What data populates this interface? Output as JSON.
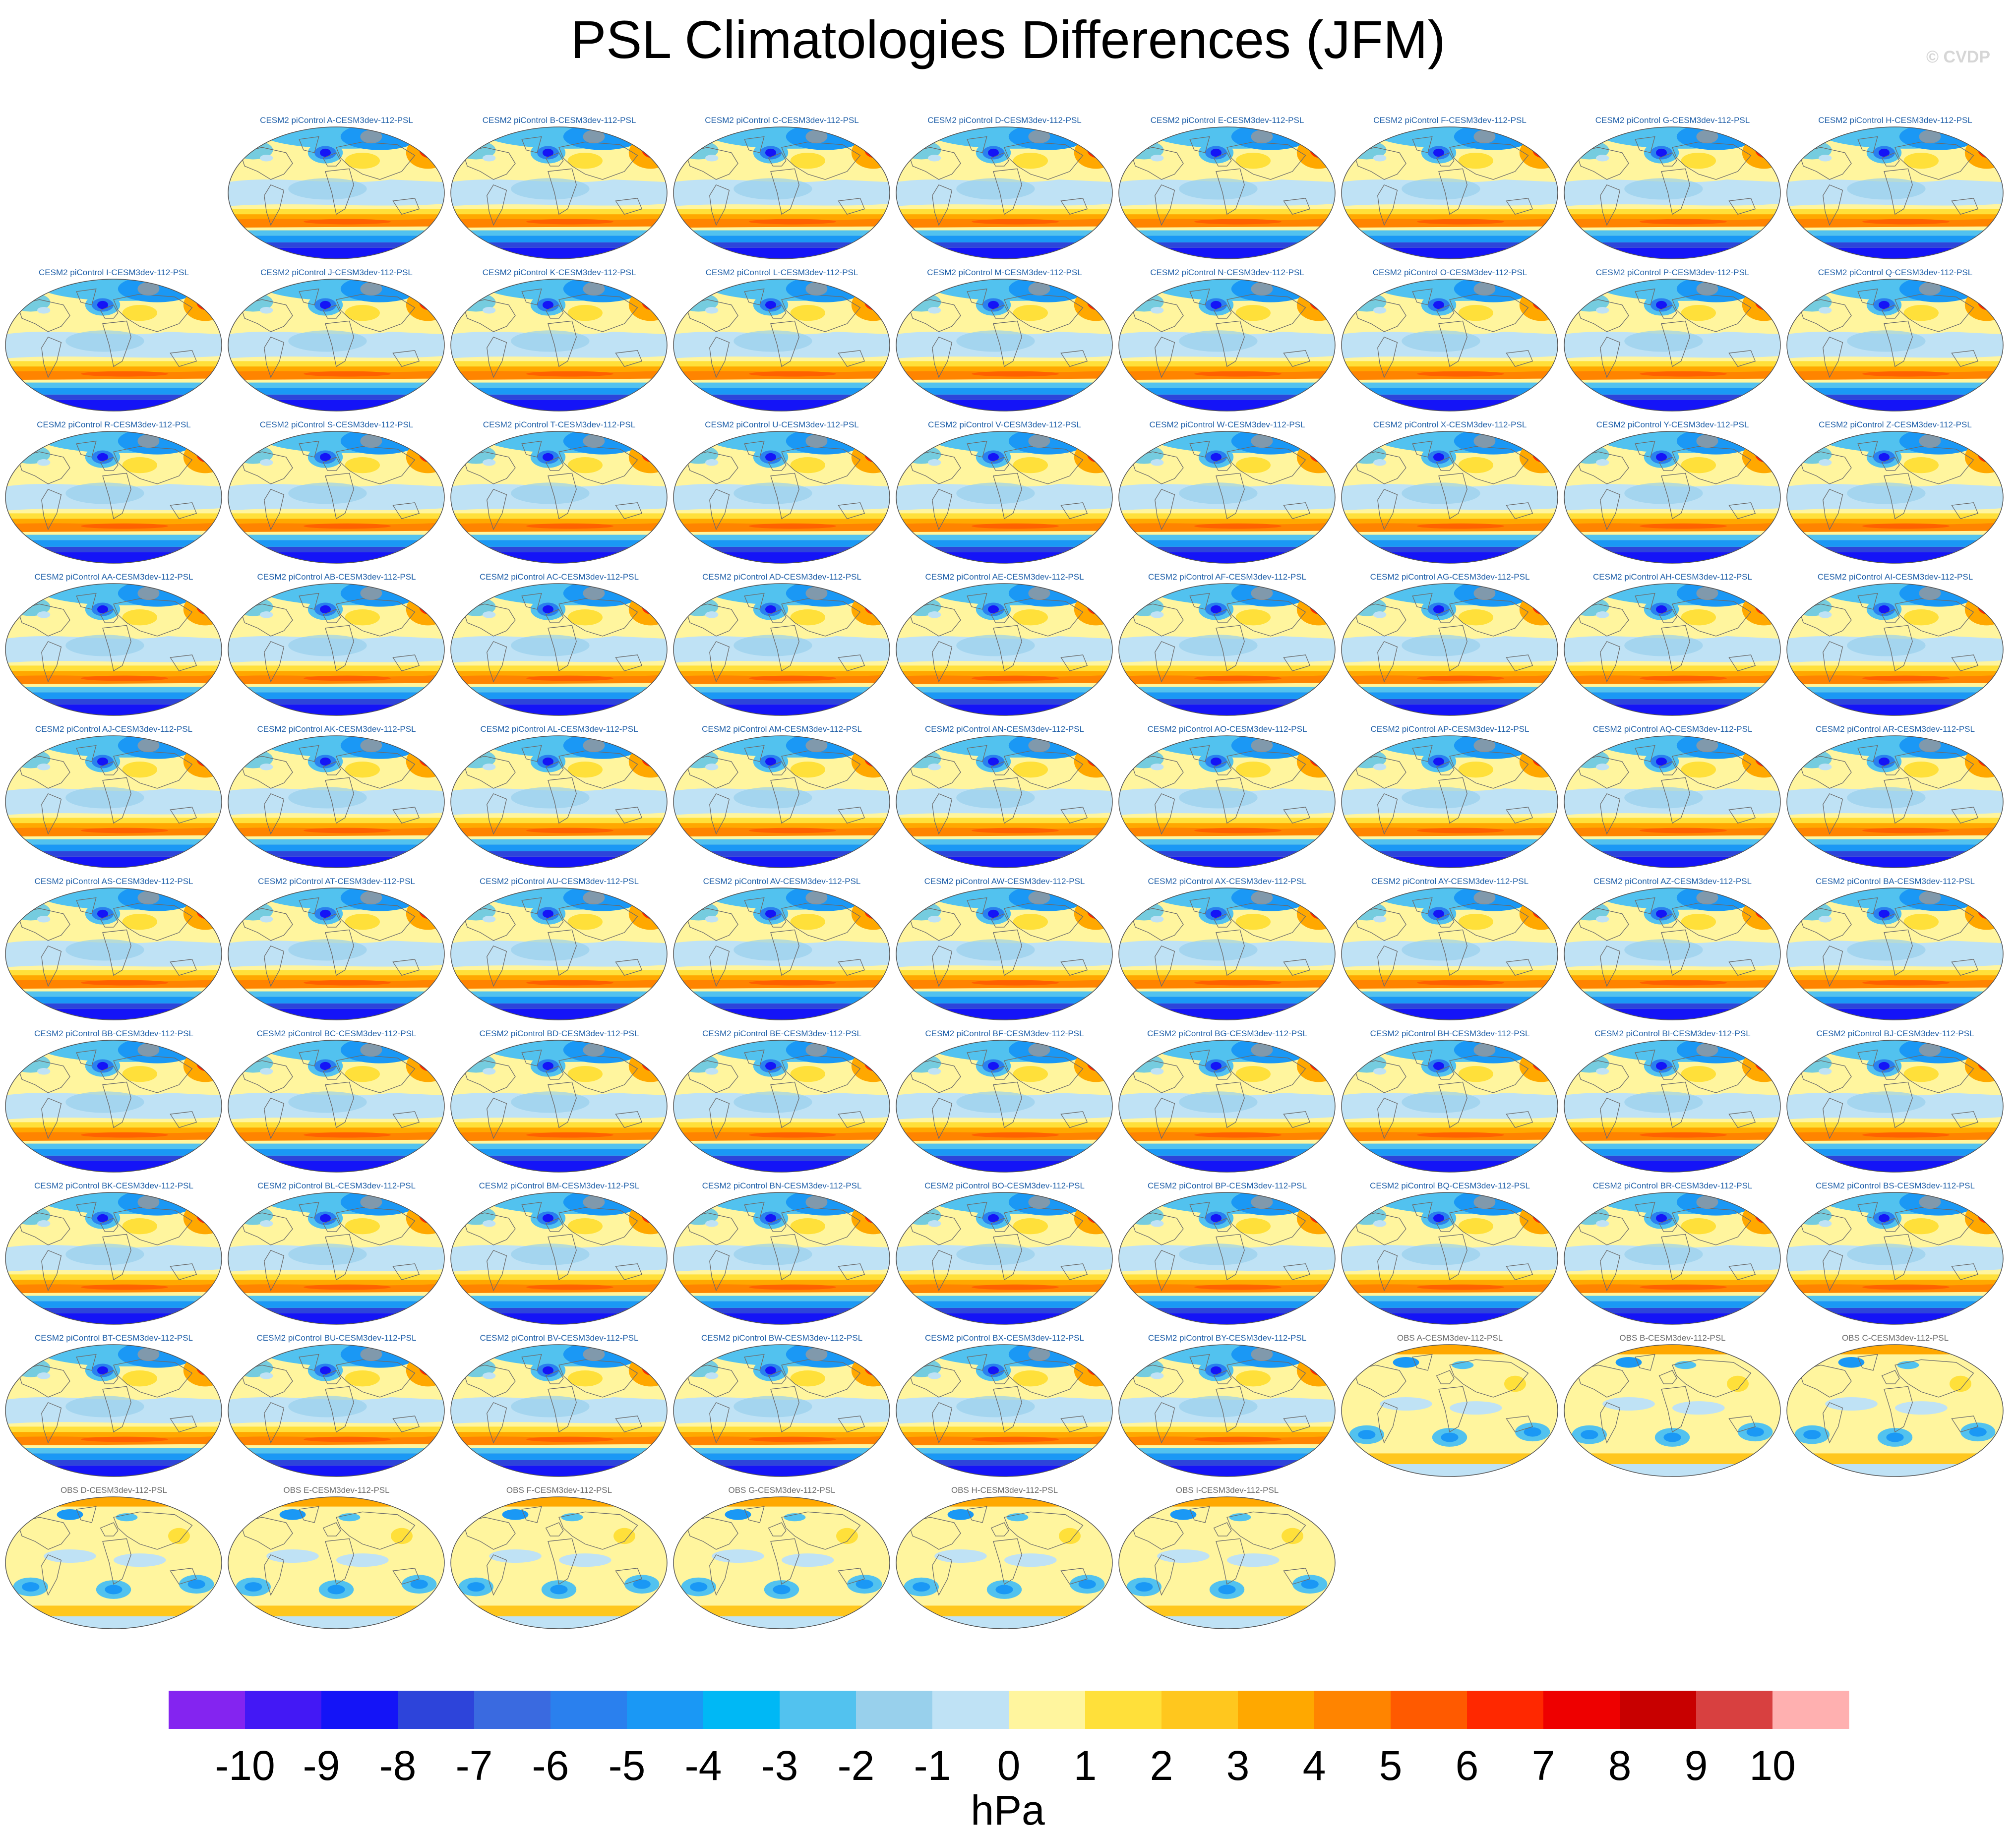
{
  "figure_title": "PSL Climatologies Differences (JFM)",
  "credit": "© CVDP",
  "chart_data": {
    "type": "heatmap",
    "title": "PSL Climatologies Differences (JFM)",
    "variable": "PSL",
    "season": "JFM",
    "reference": "CESM3dev-112",
    "units": "hPa",
    "colorbar": {
      "label": "hPa",
      "tick_labels": [
        "-10",
        "-9",
        "-8",
        "-7",
        "-6",
        "-5",
        "-4",
        "-3",
        "-2",
        "-1",
        "0",
        "1",
        "2",
        "3",
        "4",
        "5",
        "6",
        "7",
        "8",
        "9",
        "10"
      ],
      "levels": [
        -10,
        -9,
        -8,
        -7,
        -6,
        -5,
        -4,
        -3,
        -2,
        -1,
        0,
        1,
        2,
        3,
        4,
        5,
        6,
        7,
        8,
        9,
        10
      ],
      "colors": [
        "#8424f0",
        "#4318f5",
        "#1414f7",
        "#2d44da",
        "#3a6ae0",
        "#2a80ee",
        "#1a98f5",
        "#00b8f5",
        "#52c2ef",
        "#98d0ec",
        "#bfe2f5",
        "#fff59e",
        "#ffe03a",
        "#ffc71e",
        "#ffa800",
        "#ff8400",
        "#ff5a00",
        "#ff2800",
        "#ee0000",
        "#c80000",
        "#d84040",
        "#ffb0b0"
      ]
    },
    "panels": [
      {
        "label": "CESM2 piControl A-CESM3dev-112-PSL",
        "type": "model"
      },
      {
        "label": "CESM2 piControl B-CESM3dev-112-PSL",
        "type": "model"
      },
      {
        "label": "CESM2 piControl C-CESM3dev-112-PSL",
        "type": "model"
      },
      {
        "label": "CESM2 piControl D-CESM3dev-112-PSL",
        "type": "model"
      },
      {
        "label": "CESM2 piControl E-CESM3dev-112-PSL",
        "type": "model"
      },
      {
        "label": "CESM2 piControl F-CESM3dev-112-PSL",
        "type": "model"
      },
      {
        "label": "CESM2 piControl G-CESM3dev-112-PSL",
        "type": "model"
      },
      {
        "label": "CESM2 piControl H-CESM3dev-112-PSL",
        "type": "model"
      },
      {
        "label": "CESM2 piControl I-CESM3dev-112-PSL",
        "type": "model"
      },
      {
        "label": "CESM2 piControl J-CESM3dev-112-PSL",
        "type": "model"
      },
      {
        "label": "CESM2 piControl K-CESM3dev-112-PSL",
        "type": "model"
      },
      {
        "label": "CESM2 piControl L-CESM3dev-112-PSL",
        "type": "model"
      },
      {
        "label": "CESM2 piControl M-CESM3dev-112-PSL",
        "type": "model"
      },
      {
        "label": "CESM2 piControl N-CESM3dev-112-PSL",
        "type": "model"
      },
      {
        "label": "CESM2 piControl O-CESM3dev-112-PSL",
        "type": "model"
      },
      {
        "label": "CESM2 piControl P-CESM3dev-112-PSL",
        "type": "model"
      },
      {
        "label": "CESM2 piControl Q-CESM3dev-112-PSL",
        "type": "model"
      },
      {
        "label": "CESM2 piControl R-CESM3dev-112-PSL",
        "type": "model"
      },
      {
        "label": "CESM2 piControl S-CESM3dev-112-PSL",
        "type": "model"
      },
      {
        "label": "CESM2 piControl T-CESM3dev-112-PSL",
        "type": "model"
      },
      {
        "label": "CESM2 piControl U-CESM3dev-112-PSL",
        "type": "model"
      },
      {
        "label": "CESM2 piControl V-CESM3dev-112-PSL",
        "type": "model"
      },
      {
        "label": "CESM2 piControl W-CESM3dev-112-PSL",
        "type": "model"
      },
      {
        "label": "CESM2 piControl X-CESM3dev-112-PSL",
        "type": "model"
      },
      {
        "label": "CESM2 piControl Y-CESM3dev-112-PSL",
        "type": "model"
      },
      {
        "label": "CESM2 piControl Z-CESM3dev-112-PSL",
        "type": "model"
      },
      {
        "label": "CESM2 piControl AA-CESM3dev-112-PSL",
        "type": "model"
      },
      {
        "label": "CESM2 piControl AB-CESM3dev-112-PSL",
        "type": "model"
      },
      {
        "label": "CESM2 piControl AC-CESM3dev-112-PSL",
        "type": "model"
      },
      {
        "label": "CESM2 piControl AD-CESM3dev-112-PSL",
        "type": "model"
      },
      {
        "label": "CESM2 piControl AE-CESM3dev-112-PSL",
        "type": "model"
      },
      {
        "label": "CESM2 piControl AF-CESM3dev-112-PSL",
        "type": "model"
      },
      {
        "label": "CESM2 piControl AG-CESM3dev-112-PSL",
        "type": "model"
      },
      {
        "label": "CESM2 piControl AH-CESM3dev-112-PSL",
        "type": "model"
      },
      {
        "label": "CESM2 piControl AI-CESM3dev-112-PSL",
        "type": "model"
      },
      {
        "label": "CESM2 piControl AJ-CESM3dev-112-PSL",
        "type": "model"
      },
      {
        "label": "CESM2 piControl AK-CESM3dev-112-PSL",
        "type": "model"
      },
      {
        "label": "CESM2 piControl AL-CESM3dev-112-PSL",
        "type": "model"
      },
      {
        "label": "CESM2 piControl AM-CESM3dev-112-PSL",
        "type": "model"
      },
      {
        "label": "CESM2 piControl AN-CESM3dev-112-PSL",
        "type": "model"
      },
      {
        "label": "CESM2 piControl AO-CESM3dev-112-PSL",
        "type": "model"
      },
      {
        "label": "CESM2 piControl AP-CESM3dev-112-PSL",
        "type": "model"
      },
      {
        "label": "CESM2 piControl AQ-CESM3dev-112-PSL",
        "type": "model"
      },
      {
        "label": "CESM2 piControl AR-CESM3dev-112-PSL",
        "type": "model"
      },
      {
        "label": "CESM2 piControl AS-CESM3dev-112-PSL",
        "type": "model"
      },
      {
        "label": "CESM2 piControl AT-CESM3dev-112-PSL",
        "type": "model"
      },
      {
        "label": "CESM2 piControl AU-CESM3dev-112-PSL",
        "type": "model"
      },
      {
        "label": "CESM2 piControl AV-CESM3dev-112-PSL",
        "type": "model"
      },
      {
        "label": "CESM2 piControl AW-CESM3dev-112-PSL",
        "type": "model"
      },
      {
        "label": "CESM2 piControl AX-CESM3dev-112-PSL",
        "type": "model"
      },
      {
        "label": "CESM2 piControl AY-CESM3dev-112-PSL",
        "type": "model"
      },
      {
        "label": "CESM2 piControl AZ-CESM3dev-112-PSL",
        "type": "model"
      },
      {
        "label": "CESM2 piControl BA-CESM3dev-112-PSL",
        "type": "model"
      },
      {
        "label": "CESM2 piControl BB-CESM3dev-112-PSL",
        "type": "model"
      },
      {
        "label": "CESM2 piControl BC-CESM3dev-112-PSL",
        "type": "model"
      },
      {
        "label": "CESM2 piControl BD-CESM3dev-112-PSL",
        "type": "model"
      },
      {
        "label": "CESM2 piControl BE-CESM3dev-112-PSL",
        "type": "model"
      },
      {
        "label": "CESM2 piControl BF-CESM3dev-112-PSL",
        "type": "model"
      },
      {
        "label": "CESM2 piControl BG-CESM3dev-112-PSL",
        "type": "model"
      },
      {
        "label": "CESM2 piControl BH-CESM3dev-112-PSL",
        "type": "model"
      },
      {
        "label": "CESM2 piControl BI-CESM3dev-112-PSL",
        "type": "model"
      },
      {
        "label": "CESM2 piControl BJ-CESM3dev-112-PSL",
        "type": "model"
      },
      {
        "label": "CESM2 piControl BK-CESM3dev-112-PSL",
        "type": "model"
      },
      {
        "label": "CESM2 piControl BL-CESM3dev-112-PSL",
        "type": "model"
      },
      {
        "label": "CESM2 piControl BM-CESM3dev-112-PSL",
        "type": "model"
      },
      {
        "label": "CESM2 piControl BN-CESM3dev-112-PSL",
        "type": "model"
      },
      {
        "label": "CESM2 piControl BO-CESM3dev-112-PSL",
        "type": "model"
      },
      {
        "label": "CESM2 piControl BP-CESM3dev-112-PSL",
        "type": "model"
      },
      {
        "label": "CESM2 piControl BQ-CESM3dev-112-PSL",
        "type": "model"
      },
      {
        "label": "CESM2 piControl BR-CESM3dev-112-PSL",
        "type": "model"
      },
      {
        "label": "CESM2 piControl BS-CESM3dev-112-PSL",
        "type": "model"
      },
      {
        "label": "CESM2 piControl BT-CESM3dev-112-PSL",
        "type": "model"
      },
      {
        "label": "CESM2 piControl BU-CESM3dev-112-PSL",
        "type": "model"
      },
      {
        "label": "CESM2 piControl BV-CESM3dev-112-PSL",
        "type": "model"
      },
      {
        "label": "CESM2 piControl BW-CESM3dev-112-PSL",
        "type": "model"
      },
      {
        "label": "CESM2 piControl BX-CESM3dev-112-PSL",
        "type": "model"
      },
      {
        "label": "CESM2 piControl BY-CESM3dev-112-PSL",
        "type": "model"
      },
      {
        "label": "OBS A-CESM3dev-112-PSL",
        "type": "obs"
      },
      {
        "label": "OBS B-CESM3dev-112-PSL",
        "type": "obs"
      },
      {
        "label": "OBS C-CESM3dev-112-PSL",
        "type": "obs"
      },
      {
        "label": "OBS D-CESM3dev-112-PSL",
        "type": "obs"
      },
      {
        "label": "OBS E-CESM3dev-112-PSL",
        "type": "obs"
      },
      {
        "label": "OBS F-CESM3dev-112-PSL",
        "type": "obs"
      },
      {
        "label": "OBS G-CESM3dev-112-PSL",
        "type": "obs"
      },
      {
        "label": "OBS H-CESM3dev-112-PSL",
        "type": "obs"
      },
      {
        "label": "OBS I-CESM3dev-112-PSL",
        "type": "obs"
      }
    ]
  }
}
